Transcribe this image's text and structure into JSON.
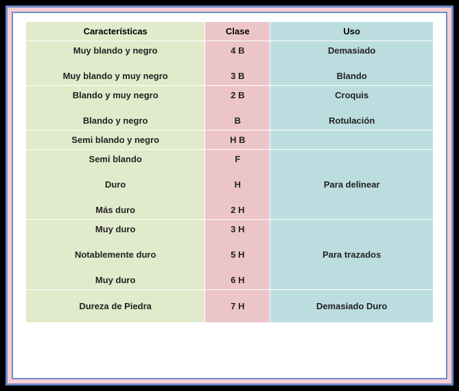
{
  "headers": {
    "caracteristicas": "Características",
    "clase": "Clase",
    "uso": "Uso"
  },
  "colors": {
    "header_bg": "#8fbf4d",
    "col_car_bg": "#e1eacb",
    "col_cla_bg": "#ecc5c9",
    "col_uso_bg": "#bcdde0",
    "frame_border": "#6a8bc9",
    "frame_fill": "#f7cdd4"
  },
  "rows": [
    {
      "car": "Muy blando y negro",
      "cla": "4 B",
      "uso": "Demasiado",
      "group_end": false
    },
    {
      "car": "",
      "cla": "",
      "uso": "",
      "group_end": false,
      "spacer": true
    },
    {
      "car": "Muy blando y muy negro",
      "cla": "3 B",
      "uso": "Blando",
      "group_end": true
    },
    {
      "car": "Blando y muy negro",
      "cla": "2 B",
      "uso": "Croquis",
      "group_end": false
    },
    {
      "car": "",
      "cla": "",
      "uso": "",
      "group_end": false,
      "spacer": true
    },
    {
      "car": "Blando y negro",
      "cla": "B",
      "uso": "Rotulación",
      "group_end": true
    },
    {
      "car": "Semi blando y negro",
      "cla": "H B",
      "uso": "",
      "group_end": true
    },
    {
      "car": "Semi blando",
      "cla": "F",
      "uso": "",
      "group_end": false
    },
    {
      "car": "",
      "cla": "",
      "uso": "",
      "group_end": false,
      "spacer": true
    },
    {
      "car": "Duro",
      "cla": "H",
      "uso": "Para delinear",
      "group_end": false
    },
    {
      "car": "",
      "cla": "",
      "uso": "",
      "group_end": false,
      "spacer": true
    },
    {
      "car": "Más duro",
      "cla": "2 H",
      "uso": "",
      "group_end": true
    },
    {
      "car": "Muy duro",
      "cla": "3 H",
      "uso": "",
      "group_end": false
    },
    {
      "car": "",
      "cla": "",
      "uso": "",
      "group_end": false,
      "spacer": true
    },
    {
      "car": "Notablemente duro",
      "cla": "5 H",
      "uso": "Para trazados",
      "group_end": false
    },
    {
      "car": "",
      "cla": "",
      "uso": "",
      "group_end": false,
      "spacer": true
    },
    {
      "car": "Muy duro",
      "cla": "6 H",
      "uso": "",
      "group_end": true
    },
    {
      "car": "",
      "cla": "",
      "uso": "",
      "group_end": false,
      "spacer": true
    },
    {
      "car": "Dureza de Piedra",
      "cla": "7 H",
      "uso": "Demasiado Duro",
      "group_end": false
    },
    {
      "car": "",
      "cla": "",
      "uso": "",
      "group_end": true,
      "spacer": true
    }
  ]
}
